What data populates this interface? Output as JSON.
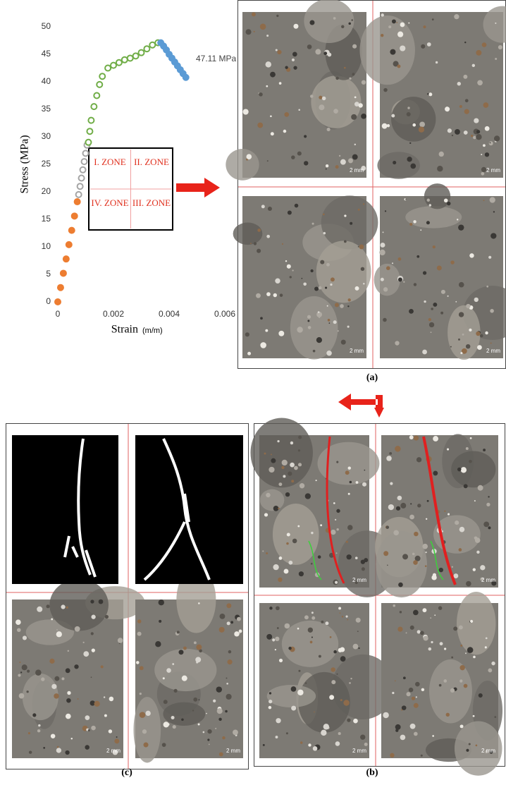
{
  "chart_data": {
    "type": "scatter",
    "ylabel": "Stress (MPa)",
    "xlabel": "Strain",
    "xlabel_unit": "(m/m)",
    "annotation": "47.11 MPa",
    "xlim": [
      0,
      0.006
    ],
    "ylim": [
      0,
      50
    ],
    "xticks": [
      0,
      0.002,
      0.004,
      0.006
    ],
    "yticks": [
      0,
      5,
      10,
      15,
      20,
      25,
      30,
      35,
      40,
      45,
      50
    ],
    "series": [
      {
        "color": "#ed7d31",
        "marker_fill": true,
        "x": [
          0,
          0.0001,
          0.0002,
          0.0003,
          0.0004,
          0.0005,
          0.0006,
          0.0007
        ],
        "values": [
          0,
          2.6,
          5.2,
          7.8,
          10.4,
          13,
          15.6,
          18.2
        ]
      },
      {
        "color": "#a5a5a5",
        "marker_fill": false,
        "x": [
          0.00075,
          0.0008,
          0.00085,
          0.0009,
          0.00095,
          0.001,
          0.00105
        ],
        "values": [
          19.5,
          21,
          22.5,
          24,
          25.5,
          27,
          28.5
        ]
      },
      {
        "color": "#70ad47",
        "marker_fill": false,
        "x": [
          0.0011,
          0.00115,
          0.0012,
          0.0013,
          0.0014,
          0.0015,
          0.0016,
          0.0018,
          0.002,
          0.0022,
          0.0024,
          0.0026,
          0.0028,
          0.003,
          0.0032,
          0.0034,
          0.0036
        ],
        "values": [
          29,
          31,
          33,
          35.5,
          37.5,
          39.5,
          41,
          42.5,
          43,
          43.5,
          44,
          44.3,
          44.7,
          45.3,
          46,
          46.7,
          47.1
        ]
      },
      {
        "color": "#5b9bd5",
        "marker_fill": true,
        "x": [
          0.0037,
          0.0038,
          0.0039,
          0.004,
          0.0041,
          0.0042,
          0.0043,
          0.0044,
          0.0045,
          0.0046
        ],
        "values": [
          47.1,
          46.5,
          45.8,
          45,
          44.3,
          43.6,
          42.9,
          42.2,
          41.5,
          40.8
        ]
      }
    ]
  },
  "zones": [
    "I. ZONE",
    "II. ZONE",
    "IV. ZONE",
    "III. ZONE"
  ],
  "panels": {
    "a": "(a)",
    "b": "(b)",
    "c": "(c)"
  },
  "scale_bar": "2 mm"
}
